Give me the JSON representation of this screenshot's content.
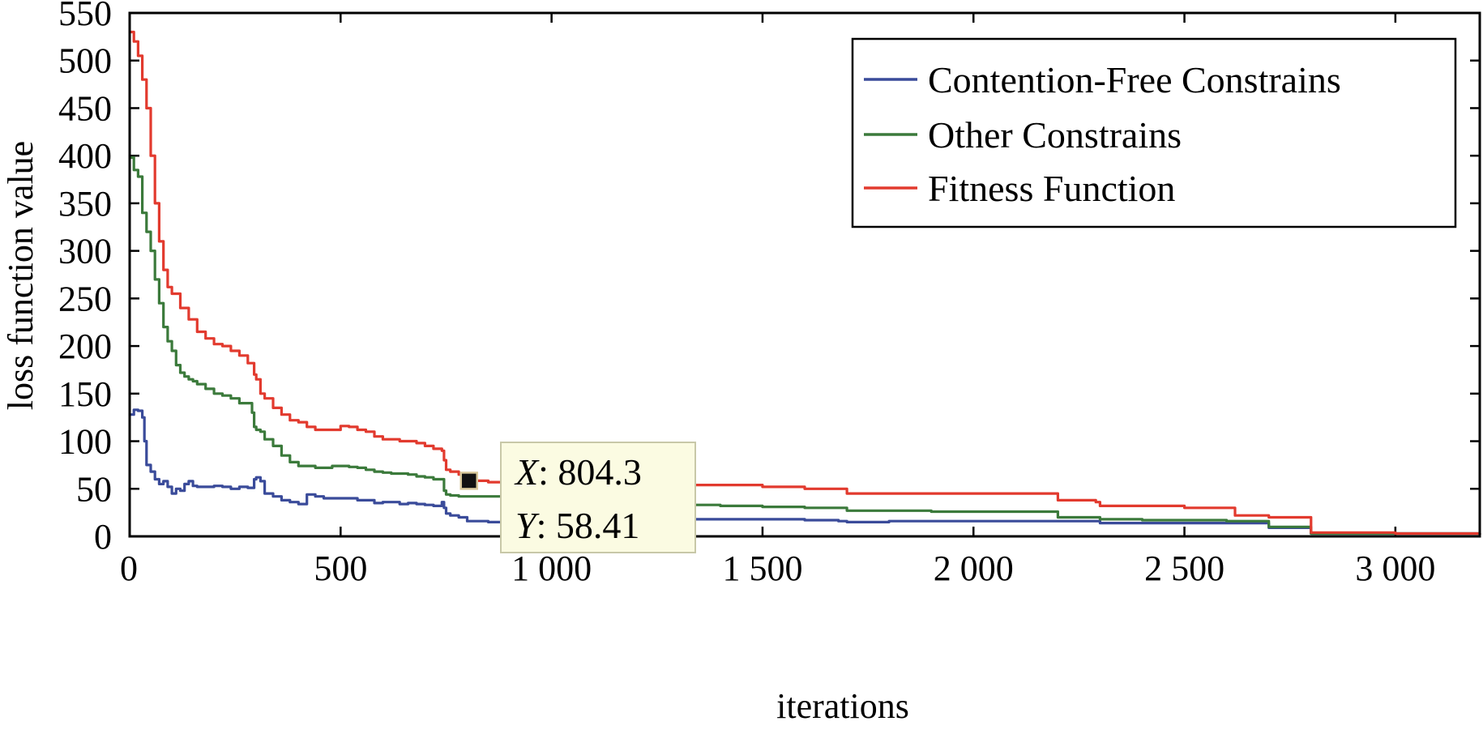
{
  "chart_data": {
    "type": "line",
    "xlabel": "iterations",
    "ylabel": "loss function value",
    "xlim": [
      0,
      3200
    ],
    "ylim": [
      0,
      550
    ],
    "xticks": [
      0,
      500,
      1000,
      1500,
      2000,
      2500,
      3000
    ],
    "xtick_labels": [
      "0",
      "500",
      "1 000",
      "1 500",
      "2 000",
      "2 500",
      "3 000"
    ],
    "yticks": [
      0,
      50,
      100,
      150,
      200,
      250,
      300,
      350,
      400,
      450,
      500,
      550
    ],
    "ytick_labels": [
      "0",
      "50",
      "100",
      "150",
      "200",
      "250",
      "300",
      "350",
      "400",
      "450",
      "500",
      "550"
    ],
    "grid": false,
    "legend_position": "top-right",
    "series": [
      {
        "name": "Contention-Free Constrains",
        "color": "#3a4b9a",
        "x": [
          0,
          10,
          20,
          30,
          35,
          40,
          50,
          60,
          70,
          80,
          90,
          100,
          110,
          120,
          130,
          140,
          150,
          160,
          180,
          200,
          220,
          240,
          260,
          280,
          295,
          300,
          310,
          320,
          340,
          360,
          380,
          400,
          420,
          440,
          460,
          480,
          500,
          520,
          540,
          560,
          580,
          600,
          620,
          640,
          660,
          680,
          700,
          720,
          740,
          745,
          750,
          760,
          780,
          800,
          850,
          900,
          950,
          1000,
          1100,
          1200,
          1300,
          1400,
          1500,
          1600,
          1680,
          1700,
          1800,
          1900,
          2000,
          2100,
          2200,
          2280,
          2300,
          2400,
          2500,
          2600,
          2620,
          2700,
          2780,
          2800,
          3000,
          3200
        ],
        "y": [
          128,
          133,
          132,
          125,
          100,
          75,
          68,
          60,
          55,
          58,
          52,
          45,
          50,
          48,
          55,
          58,
          53,
          52,
          52,
          53,
          52,
          50,
          52,
          51,
          60,
          62,
          58,
          45,
          42,
          38,
          36,
          34,
          44,
          42,
          40,
          40,
          40,
          40,
          38,
          38,
          35,
          36,
          36,
          34,
          35,
          34,
          33,
          32,
          36,
          30,
          24,
          22,
          20,
          16,
          15,
          16,
          16,
          16,
          18,
          18,
          18,
          18,
          18,
          17,
          16,
          15,
          16,
          16,
          16,
          16,
          16,
          16,
          14,
          14,
          14,
          14,
          14,
          9,
          9,
          3,
          3,
          2
        ]
      },
      {
        "name": "Other Constrains",
        "color": "#3b7a3b",
        "x": [
          0,
          10,
          20,
          30,
          40,
          50,
          60,
          70,
          80,
          90,
          100,
          110,
          120,
          130,
          140,
          150,
          160,
          180,
          200,
          220,
          240,
          260,
          280,
          290,
          295,
          300,
          310,
          320,
          340,
          360,
          380,
          400,
          420,
          440,
          460,
          480,
          500,
          520,
          540,
          560,
          580,
          600,
          620,
          640,
          660,
          680,
          700,
          720,
          740,
          745,
          750,
          760,
          780,
          800,
          900,
          950,
          1000,
          1100,
          1200,
          1300,
          1400,
          1500,
          1600,
          1690,
          1700,
          1800,
          1900,
          2000,
          2100,
          2170,
          2200,
          2300,
          2400,
          2500,
          2600,
          2620,
          2700,
          2780,
          2800,
          3000,
          3200
        ],
        "y": [
          398,
          385,
          378,
          340,
          320,
          300,
          270,
          245,
          220,
          205,
          195,
          180,
          172,
          168,
          165,
          163,
          160,
          155,
          150,
          148,
          145,
          140,
          140,
          130,
          115,
          112,
          110,
          102,
          95,
          85,
          78,
          74,
          74,
          72,
          72,
          74,
          74,
          73,
          72,
          70,
          68,
          67,
          66,
          66,
          65,
          63,
          62,
          60,
          60,
          48,
          44,
          43,
          42,
          42,
          40,
          38,
          36,
          34,
          34,
          33,
          32,
          31,
          30,
          30,
          27,
          27,
          26,
          26,
          26,
          26,
          20,
          18,
          17,
          17,
          16,
          16,
          10,
          10,
          3,
          3,
          2
        ]
      },
      {
        "name": "Fitness Function",
        "color": "#e23a2e",
        "x": [
          0,
          10,
          20,
          30,
          40,
          50,
          60,
          70,
          80,
          90,
          100,
          120,
          140,
          160,
          180,
          200,
          220,
          240,
          260,
          280,
          295,
          300,
          310,
          320,
          340,
          360,
          380,
          400,
          420,
          440,
          460,
          480,
          500,
          520,
          540,
          560,
          580,
          600,
          620,
          640,
          660,
          680,
          700,
          720,
          740,
          745,
          750,
          760,
          780,
          800,
          804.3,
          850,
          900,
          950,
          1000,
          1100,
          1200,
          1300,
          1400,
          1450,
          1500,
          1600,
          1680,
          1700,
          1800,
          1900,
          2000,
          2100,
          2170,
          2200,
          2290,
          2300,
          2400,
          2500,
          2600,
          2620,
          2700,
          2780,
          2800,
          3000,
          3200
        ],
        "y": [
          530,
          520,
          505,
          480,
          450,
          400,
          350,
          310,
          280,
          262,
          255,
          240,
          228,
          215,
          208,
          202,
          200,
          195,
          190,
          182,
          170,
          165,
          150,
          145,
          135,
          128,
          122,
          120,
          115,
          112,
          112,
          112,
          116,
          115,
          112,
          110,
          105,
          102,
          102,
          100,
          100,
          98,
          95,
          92,
          90,
          80,
          70,
          68,
          65,
          60,
          58.41,
          57,
          55,
          54,
          54,
          54,
          54,
          54,
          54,
          54,
          52,
          50,
          50,
          45,
          45,
          45,
          45,
          45,
          45,
          38,
          36,
          32,
          32,
          30,
          30,
          22,
          20,
          20,
          4,
          3,
          2
        ]
      }
    ],
    "annotation": {
      "type": "datatip",
      "x_label": "X",
      "x_text": ": 804.3",
      "x_value": 804.3,
      "y_label": "Y",
      "y_text": ": 58.41",
      "y_value": 58.41
    }
  }
}
